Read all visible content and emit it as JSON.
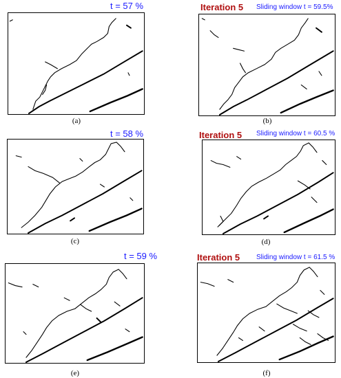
{
  "colors": {
    "label_blue": "#1a1aff",
    "iteration_red": "#b01010",
    "crack": "#000000"
  },
  "panels": [
    {
      "id": "a",
      "caption": "(a)",
      "label": "t = 57 %"
    },
    {
      "id": "b",
      "caption": "(b)",
      "iteration": "Iteration 5",
      "label": "Sliding window t = 59.5%"
    },
    {
      "id": "c",
      "caption": "(c)",
      "label": "t = 58 %"
    },
    {
      "id": "d",
      "caption": "(d)",
      "iteration": "Iteration 5",
      "label": "Sliding window t = 60.5 %"
    },
    {
      "id": "e",
      "caption": "(e)",
      "label": "t = 59 %"
    },
    {
      "id": "f",
      "caption": "(f)",
      "iteration": "Iteration 5",
      "label": "Sliding window t = 61.5 %"
    }
  ]
}
